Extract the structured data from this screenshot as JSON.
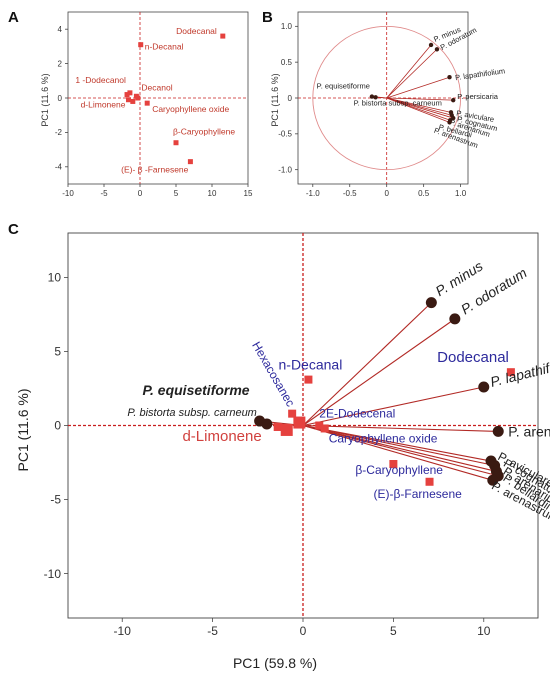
{
  "colors": {
    "marker": "#e5413e",
    "arrow": "#b22a26",
    "dot": "#3a1a12",
    "compound": "#c0392b",
    "compound_c_blue": "#2d2a9c",
    "compound_c_red": "#d1413e",
    "axis_dash": "#c81e1e",
    "circle": "#e08b8b",
    "species": "#222222"
  },
  "chart_data": [
    {
      "panel": "A",
      "type": "scatter",
      "title": "",
      "xlabel": "",
      "ylabel": "PC1  (11.6 %)",
      "xlim": [
        -10,
        15
      ],
      "ylim": [
        -5,
        5
      ],
      "xticks": [
        "-10",
        "-5",
        "0",
        "5",
        "10",
        "15"
      ],
      "yticks": [
        "4",
        "2",
        "0",
        "-2",
        "-4"
      ],
      "points": [
        {
          "label": "Dodecanal",
          "x": 11.5,
          "y": 3.6
        },
        {
          "label": "n-Decanal",
          "x": 0.1,
          "y": 3.1
        },
        {
          "label": "1 -Dodecanol",
          "x": -1.4,
          "y": 0.3
        },
        {
          "label": "Decanol",
          "x": -0.5,
          "y": 0.1
        },
        {
          "label": "d-Limonene",
          "x": -1.6,
          "y": -0.1
        },
        {
          "label": "Caryophyllene oxide",
          "x": 1.0,
          "y": -0.3
        },
        {
          "label": "β-Caryophyllene",
          "x": 5.0,
          "y": -2.6
        },
        {
          "label": "(E)- β -Farnesene",
          "x": 7.0,
          "y": -3.7
        },
        {
          "label": "",
          "x": -1.0,
          "y": -0.2
        },
        {
          "label": "",
          "x": -0.3,
          "y": 0.0
        },
        {
          "label": "",
          "x": -1.8,
          "y": 0.2
        }
      ]
    },
    {
      "panel": "B",
      "type": "scatter",
      "title": "",
      "xlabel": "",
      "ylabel": "PC1  (11.6 %)",
      "xlim": [
        -1.2,
        1.1
      ],
      "ylim": [
        -1.2,
        1.2
      ],
      "xticks": [
        "-1.0",
        "-0.5",
        "0",
        "0.5",
        "1.0"
      ],
      "yticks": [
        "1.0",
        "0.5",
        "0",
        "-0.5",
        "-1.0"
      ],
      "circle_radius": 1.0,
      "loadings": [
        {
          "label": "P. minus",
          "x": 0.6,
          "y": 0.74
        },
        {
          "label": "P. odoratum",
          "x": 0.68,
          "y": 0.68
        },
        {
          "label": "P. lapathifolium",
          "x": 0.85,
          "y": 0.29
        },
        {
          "label": "P. persicaria",
          "x": 0.9,
          "y": -0.03
        },
        {
          "label": "P. aviculare",
          "x": 0.87,
          "y": -0.2
        },
        {
          "label": "P. cognatum",
          "x": 0.88,
          "y": -0.24
        },
        {
          "label": "P. arenarium",
          "x": 0.9,
          "y": -0.28
        },
        {
          "label": "P. bellardii",
          "x": 0.86,
          "y": -0.31
        },
        {
          "label": "P. arenastrum",
          "x": 0.85,
          "y": -0.34
        },
        {
          "label": "P. equisetiforme",
          "x": -0.2,
          "y": 0.02
        },
        {
          "label": "P. bistorta subsp. carneum",
          "x": -0.15,
          "y": 0.01
        }
      ]
    },
    {
      "panel": "C",
      "type": "scatter",
      "title": "",
      "xlabel": "PC1  (59.8 %)",
      "ylabel": "PC1  (11.6 %)",
      "xlim": [
        -13,
        13
      ],
      "ylim": [
        -13,
        13
      ],
      "xticks": [
        "-10",
        "-5",
        "0",
        "5",
        "10"
      ],
      "yticks": [
        "10",
        "5",
        "0",
        "-5",
        "-10"
      ],
      "species": [
        {
          "label": "P. minus",
          "x": 7.1,
          "y": 8.3
        },
        {
          "label": "P. odoratum",
          "x": 8.4,
          "y": 7.2
        },
        {
          "label": "P. lapathifolium",
          "x": 10.0,
          "y": 2.6
        },
        {
          "label": "P. arenarium",
          "x": 10.8,
          "y": -0.4
        },
        {
          "label": "P. aviculare",
          "x": 10.4,
          "y": -2.4
        },
        {
          "label": "P. cognatum",
          "x": 10.6,
          "y": -2.7
        },
        {
          "label": "P. arenarium",
          "x": 10.7,
          "y": -3.1
        },
        {
          "label": "P. bellardii",
          "x": 10.8,
          "y": -3.4
        },
        {
          "label": "P. arenastrum",
          "x": 10.5,
          "y": -3.7
        },
        {
          "label": "P. equisetiforme",
          "x": -2.4,
          "y": 0.3
        },
        {
          "label": "P. bistorta subsp. carneum",
          "x": -2.0,
          "y": 0.1
        }
      ],
      "compounds": [
        {
          "label": "Dodecanal",
          "x": 11.5,
          "y": 3.6,
          "color": "blue"
        },
        {
          "label": "n-Decanal",
          "x": 0.3,
          "y": 3.1,
          "color": "blue"
        },
        {
          "label": "Hexacosanec",
          "x": -0.6,
          "y": 0.8,
          "color": "blue"
        },
        {
          "label": "2E-Dodecenal",
          "x": 0.9,
          "y": 0.0,
          "color": "blue"
        },
        {
          "label": "Caryophyllene oxide",
          "x": 1.2,
          "y": -0.2,
          "color": "blue"
        },
        {
          "label": "d-Limonene",
          "x": -1.4,
          "y": -0.1,
          "color": "red"
        },
        {
          "label": "β-Caryophyllene",
          "x": 5.0,
          "y": -2.6,
          "color": "blue"
        },
        {
          "label": "(E)-β-Farnesene",
          "x": 7.0,
          "y": -3.8,
          "color": "blue"
        },
        {
          "label": "",
          "x": -0.2,
          "y": 0.2,
          "color": "red"
        },
        {
          "label": "",
          "x": -0.9,
          "y": -0.3,
          "color": "red"
        }
      ]
    }
  ],
  "panel_labels": [
    "A",
    "B",
    "C"
  ]
}
